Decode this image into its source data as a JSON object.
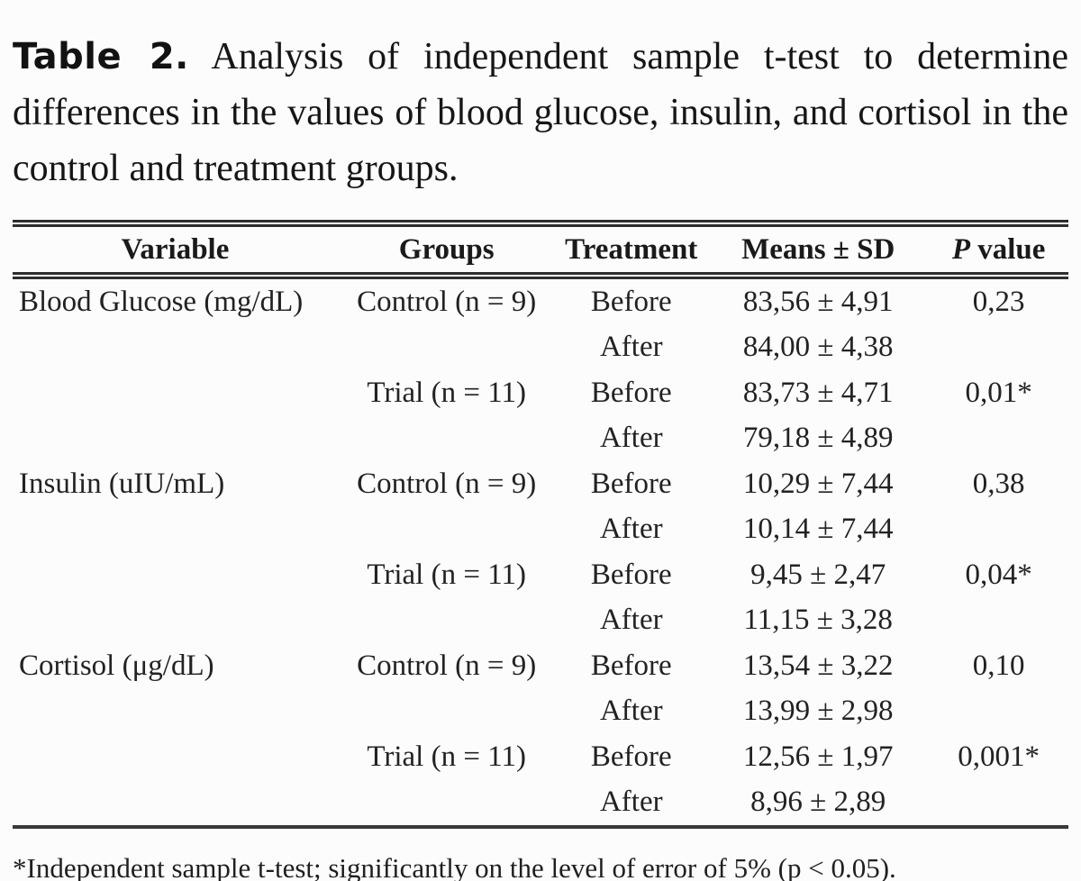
{
  "title": {
    "label": "Table 2.",
    "text": "Analysis of independent sample t-test to determine differences in the values of blood glucose, insulin, and cortisol in the control and treatment groups."
  },
  "table": {
    "columns": [
      "Variable",
      "Groups",
      "Treatment",
      "Means ± SD",
      "P value"
    ],
    "rows": [
      {
        "variable": "Blood Glucose (mg/dL)",
        "group": "Control (n = 9)",
        "treatment": "Before",
        "mean_sd": "83,56 ± 4,91",
        "p_value": "0,23"
      },
      {
        "variable": "",
        "group": "",
        "treatment": "After",
        "mean_sd": "84,00 ± 4,38",
        "p_value": ""
      },
      {
        "variable": "",
        "group": "Trial (n = 11)",
        "treatment": "Before",
        "mean_sd": "83,73 ± 4,71",
        "p_value": "0,01*"
      },
      {
        "variable": "",
        "group": "",
        "treatment": "After",
        "mean_sd": "79,18 ± 4,89",
        "p_value": ""
      },
      {
        "variable": "Insulin (uIU/mL)",
        "group": "Control (n = 9)",
        "treatment": "Before",
        "mean_sd": "10,29 ± 7,44",
        "p_value": "0,38"
      },
      {
        "variable": "",
        "group": "",
        "treatment": "After",
        "mean_sd": "10,14 ± 7,44",
        "p_value": ""
      },
      {
        "variable": "",
        "group": "Trial (n = 11)",
        "treatment": "Before",
        "mean_sd": "9,45 ± 2,47",
        "p_value": "0,04*"
      },
      {
        "variable": "",
        "group": "",
        "treatment": "After",
        "mean_sd": "11,15 ± 3,28",
        "p_value": ""
      },
      {
        "variable": "Cortisol (μg/dL)",
        "group": "Control (n = 9)",
        "treatment": "Before",
        "mean_sd": "13,54 ± 3,22",
        "p_value": "0,10"
      },
      {
        "variable": "",
        "group": "",
        "treatment": "After",
        "mean_sd": "13,99 ± 2,98",
        "p_value": ""
      },
      {
        "variable": "",
        "group": "Trial (n = 11)",
        "treatment": "Before",
        "mean_sd": "12,56 ± 1,97",
        "p_value": "0,001*"
      },
      {
        "variable": "",
        "group": "",
        "treatment": "After",
        "mean_sd": "8,96 ± 2,89",
        "p_value": ""
      }
    ]
  },
  "footnote": "*Independent sample t-test; significantly on the level of error of 5% (p < 0.05)."
}
